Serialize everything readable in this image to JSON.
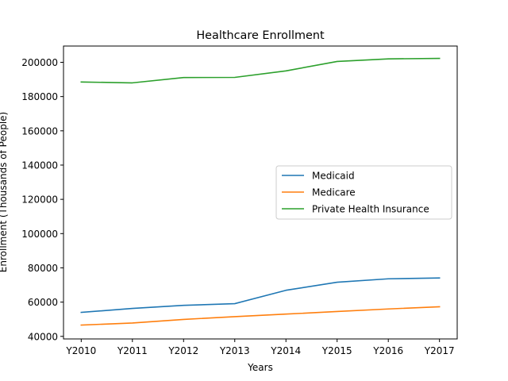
{
  "chart_data": {
    "type": "line",
    "title": "Healthcare Enrollment",
    "xlabel": "Years",
    "ylabel": "Enrollment (Thousands of People)",
    "categories": [
      "Y2010",
      "Y2011",
      "Y2012",
      "Y2013",
      "Y2014",
      "Y2015",
      "Y2016",
      "Y2017"
    ],
    "ylim": [
      38500,
      209500
    ],
    "yticks": [
      40000,
      60000,
      80000,
      100000,
      120000,
      140000,
      160000,
      180000,
      200000
    ],
    "grid": false,
    "legend_position": "center-right",
    "series": [
      {
        "name": "Medicaid",
        "color": "#1f77b4",
        "values": [
          54000,
          56300,
          58100,
          59100,
          66900,
          71600,
          73600,
          74100
        ]
      },
      {
        "name": "Medicare",
        "color": "#ff7f0e",
        "values": [
          46600,
          47800,
          49900,
          51500,
          53000,
          54500,
          56000,
          57300
        ]
      },
      {
        "name": "Private Health Insurance",
        "color": "#2ca02c",
        "values": [
          188500,
          188000,
          191100,
          191200,
          195000,
          200500,
          202000,
          202300
        ]
      }
    ]
  }
}
